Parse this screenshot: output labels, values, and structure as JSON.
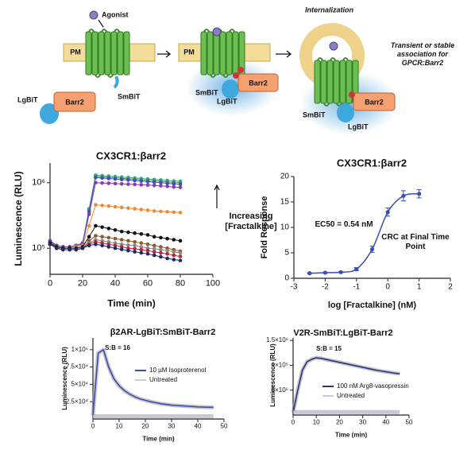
{
  "diagram": {
    "agonist": "Agonist",
    "pm": [
      "PM",
      "PM"
    ],
    "smbit": [
      "SmBiT",
      "SmBiT",
      "SmBiT"
    ],
    "lgbit": [
      "LgBiT",
      "LgBiT",
      "LgBiT"
    ],
    "barr2": [
      "Barr2",
      "Barr2",
      "Barr2"
    ],
    "internalization": "Internalization",
    "association": "Transient or stable association for GPCR:Barr2"
  },
  "chart_data": [
    {
      "type": "line",
      "title": "CX3CR1:βarr2",
      "x_label": "Time (min)",
      "y_label": "Luminescence (RLU)",
      "yscale": "log",
      "markers": true,
      "x": [
        0,
        4,
        8,
        12,
        16,
        20,
        24,
        28,
        32,
        36,
        40,
        44,
        48,
        52,
        56,
        60,
        64,
        68,
        72,
        76,
        80
      ],
      "xlim": [
        0,
        100
      ],
      "xticks": [
        0,
        20,
        40,
        60,
        80,
        100
      ],
      "ylim": [
        40000,
        2000000
      ],
      "yticks": [
        {
          "value": 100000,
          "label": "10⁵"
        },
        {
          "value": 1000000,
          "label": "10⁶"
        }
      ],
      "annotation": "Increasing [Fractalkine]",
      "series": [
        {
          "color": "#2ca6a4",
          "values": [
            130000.0,
            110000.0,
            105000.0,
            105000.0,
            110000.0,
            120000.0,
            400000.0,
            1300000.0,
            1280000.0,
            1260000.0,
            1240000.0,
            1220000.0,
            1200000.0,
            1180000.0,
            1160000.0,
            1140000.0,
            1120000.0,
            1100000.0,
            1080000.0,
            1060000.0,
            1050000.0
          ]
        },
        {
          "color": "#4a9a3a",
          "values": [
            130000.0,
            110000.0,
            105000.0,
            105000.0,
            110000.0,
            120000.0,
            380000.0,
            1250000.0,
            1230000.0,
            1210000.0,
            1190000.0,
            1170000.0,
            1150000.0,
            1130000.0,
            1110000.0,
            1090000.0,
            1070000.0,
            1050000.0,
            1030000.0,
            1010000.0,
            1000000.0
          ]
        },
        {
          "color": "#3a4fc0",
          "values": [
            130000.0,
            110000.0,
            105000.0,
            105000.0,
            110000.0,
            120000.0,
            360000.0,
            1200000.0,
            1180000.0,
            1160000.0,
            1140000.0,
            1120000.0,
            1100000.0,
            1080000.0,
            1060000.0,
            1040000.0,
            1020000.0,
            1000000.0,
            980000.0,
            960000.0,
            950000.0
          ]
        },
        {
          "color": "#8a3ab0",
          "values": [
            125000.0,
            110000.0,
            105000.0,
            105000.0,
            110000.0,
            115000.0,
            330000.0,
            1000000.0,
            990000.0,
            980000.0,
            970000.0,
            960000.0,
            950000.0,
            940000.0,
            930000.0,
            920000.0,
            910000.0,
            900000.0,
            880000.0,
            860000.0,
            850000.0
          ]
        },
        {
          "color": "#f08a30",
          "values": [
            120000.0,
            105000.0,
            100000.0,
            100000.0,
            105000.0,
            110000.0,
            220000.0,
            460000.0,
            450000.0,
            440000.0,
            430000.0,
            420000.0,
            410000.0,
            400000.0,
            390000.0,
            380000.0,
            370000.0,
            365000.0,
            360000.0,
            355000.0,
            350000.0
          ]
        },
        {
          "color": "#111111",
          "values": [
            120000.0,
            105000.0,
            100000.0,
            100000.0,
            100000.0,
            105000.0,
            150000.0,
            220000.0,
            210000.0,
            200000.0,
            190000.0,
            180000.0,
            175000.0,
            170000.0,
            165000.0,
            160000.0,
            150000.0,
            145000.0,
            140000.0,
            135000.0,
            130000.0
          ]
        },
        {
          "color": "#8b5a2b",
          "values": [
            115000.0,
            100000.0,
            95000.0,
            95000.0,
            95000.0,
            100000.0,
            130000.0,
            155000.0,
            150000.0,
            145000.0,
            140000.0,
            135000.0,
            130000.0,
            125000.0,
            120000.0,
            115000.0,
            110000.0,
            105000.0,
            100000.0,
            95000.0,
            90000.0
          ]
        },
        {
          "color": "#888888",
          "values": [
            115000.0,
            100000.0,
            95000.0,
            95000.0,
            95000.0,
            100000.0,
            120000.0,
            135000.0,
            130000.0,
            125000.0,
            120000.0,
            115000.0,
            112000.0,
            110000.0,
            105000.0,
            100000.0,
            98000.0,
            95000.0,
            92000.0,
            88000.0,
            85000.0
          ]
        },
        {
          "color": "#c0203a",
          "values": [
            115000.0,
            100000.0,
            95000.0,
            95000.0,
            95000.0,
            100000.0,
            115000.0,
            125000.0,
            120000.0,
            115000.0,
            110000.0,
            105000.0,
            100000.0,
            98000.0,
            95000.0,
            92000.0,
            88000.0,
            85000.0,
            82000.0,
            78000.0,
            75000.0
          ]
        },
        {
          "color": "#1a2a6a",
          "values": [
            115000.0,
            100000.0,
            95000.0,
            95000.0,
            95000.0,
            100000.0,
            110000.0,
            115000.0,
            110000.0,
            105000.0,
            100000.0,
            96000.0,
            92000.0,
            88000.0,
            85000.0,
            82000.0,
            78000.0,
            74000.0,
            70000.0,
            67000.0,
            65000.0
          ]
        }
      ]
    },
    {
      "type": "scatter",
      "title": "CX3CR1:βarr2",
      "x_label": "log [Fractalkine] (nM)",
      "y_label": "Fold Response",
      "color": "#3a4fb0",
      "x": [
        -2.5,
        -2,
        -1.5,
        -1,
        -0.5,
        0,
        0.5,
        1
      ],
      "values": [
        1.0,
        1.1,
        1.2,
        1.8,
        5.7,
        13,
        16.2,
        16.6
      ],
      "errors": [
        0.1,
        0.1,
        0.1,
        0.3,
        0.6,
        0.8,
        1.0,
        0.8
      ],
      "xlim": [
        -3,
        2
      ],
      "xticks": [
        -3,
        -2,
        -1,
        0,
        1,
        2
      ],
      "ylim": [
        0,
        20
      ],
      "yticks": [
        0,
        5,
        10,
        15,
        20
      ],
      "annotations": [
        "EC50 = 0.54 nM",
        "CRC at Final Time Point"
      ]
    },
    {
      "type": "line",
      "title": "β2AR-LgBiT:SmBiT-Barr2",
      "x_label": "Time (min)",
      "y_label": "Luminescence (RLU)",
      "markers": false,
      "legend": "center",
      "x": [
        0,
        2,
        4,
        6,
        8,
        10,
        12,
        14,
        16,
        18,
        20,
        22,
        24,
        26,
        28,
        30,
        32,
        34,
        36,
        38,
        40,
        42,
        44,
        46
      ],
      "xlim": [
        0,
        50
      ],
      "xticks": [
        0,
        10,
        20,
        30,
        40,
        50
      ],
      "ylim": [
        0,
        117000
      ],
      "yticks": [
        {
          "value": 25000,
          "label": "2.5×10⁴"
        },
        {
          "value": 50000,
          "label": "5×10⁴"
        },
        {
          "value": 75000,
          "label": "7.5×10⁴"
        },
        {
          "value": 100000,
          "label": "1×10⁵"
        }
      ],
      "annotation": "S:B = 16",
      "series": [
        {
          "name": "10 µM Isoproterenol",
          "color": "#3a4fb0",
          "values": [
            5000,
            95000,
            100000,
            75000,
            58000,
            48000,
            41000,
            36000,
            32000,
            29000,
            27000,
            25000,
            23500,
            22000,
            21000,
            20000,
            19500,
            19000,
            18500,
            18000,
            17500,
            17200,
            17000,
            16800
          ]
        },
        {
          "name": "Untreated",
          "color": "#c8c8ea",
          "values": [
            4000,
            4000,
            4000,
            4000,
            4000,
            4000,
            4000,
            4000,
            4000,
            4000,
            4000,
            4000,
            4000,
            4000,
            4000,
            4000,
            4000,
            4000,
            4000,
            4000,
            4000,
            4000,
            4000,
            4000
          ]
        }
      ]
    },
    {
      "type": "line",
      "title": "V2R-SmBiT:LgBiT-Barr2",
      "x_label": "Time (min)",
      "y_label": "Luminescence (RLU)",
      "markers": false,
      "legend": "center",
      "x": [
        0,
        2,
        4,
        6,
        8,
        10,
        12,
        14,
        16,
        18,
        20,
        22,
        24,
        26,
        28,
        30,
        32,
        34,
        36,
        38,
        40,
        42,
        44,
        46
      ],
      "xlim": [
        0,
        50
      ],
      "xticks": [
        0,
        10,
        20,
        30,
        40,
        50
      ],
      "ylim": [
        0,
        1550000
      ],
      "yticks": [
        {
          "value": 500000,
          "label": "5×10⁵"
        },
        {
          "value": 1000000,
          "label": "1×10⁶"
        },
        {
          "value": 1500000,
          "label": "1.5×10⁶"
        }
      ],
      "annotation": "S:B = 15",
      "series": [
        {
          "name": "100 nM Arg8-vasopressin",
          "color": "#2a3580",
          "values": [
            50000,
            500000,
            900000,
            1070000,
            1120000,
            1150000,
            1140000,
            1120000,
            1100000,
            1080000,
            1060000,
            1040000,
            1020000,
            1000000,
            980000,
            960000,
            940000,
            920000,
            900000,
            885000,
            870000,
            855000,
            840000,
            830000
          ]
        },
        {
          "name": "Untreated",
          "color": "#c8c8ea",
          "values": [
            60000,
            60000,
            60000,
            60000,
            60000,
            60000,
            60000,
            60000,
            60000,
            60000,
            60000,
            60000,
            60000,
            60000,
            60000,
            60000,
            60000,
            60000,
            60000,
            60000,
            60000,
            60000,
            60000,
            60000
          ]
        }
      ]
    }
  ]
}
